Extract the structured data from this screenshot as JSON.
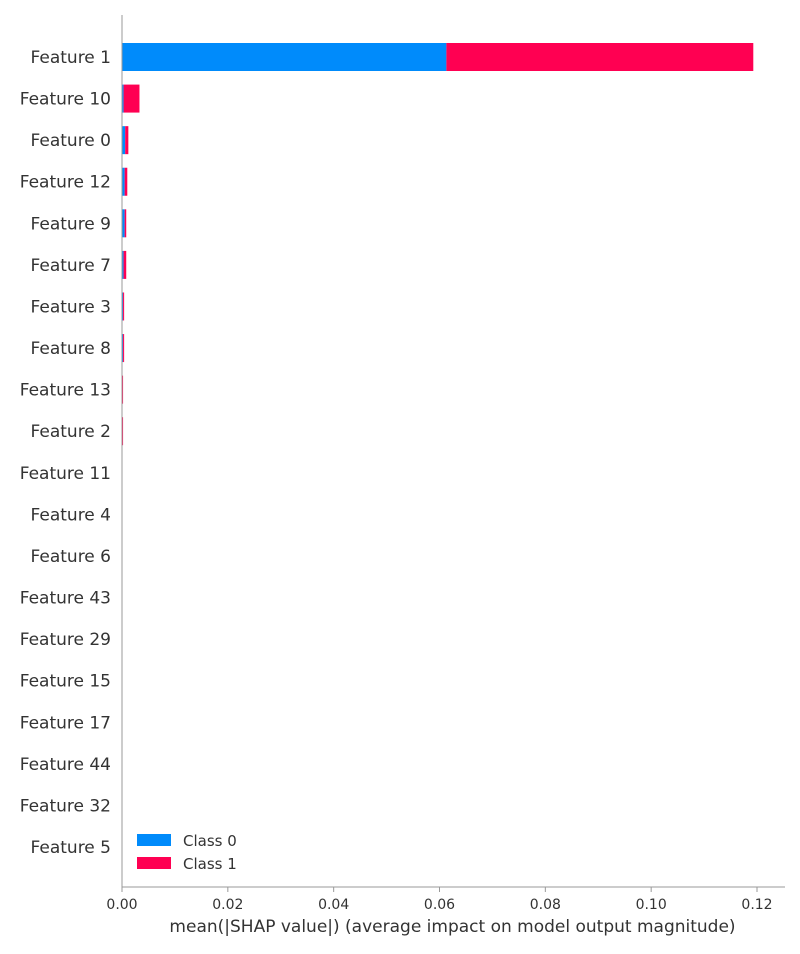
{
  "chart_data": {
    "type": "bar",
    "orientation": "horizontal",
    "stacked": true,
    "title": "",
    "xlabel": "mean(|SHAP value|) (average impact on model output magnitude)",
    "ylabel": "",
    "xlim": [
      0,
      0.125
    ],
    "xticks": [
      "0.00",
      "0.02",
      "0.04",
      "0.06",
      "0.08",
      "0.10",
      "0.12"
    ],
    "grid": false,
    "legend_position": "bottom-left",
    "categories": [
      "Feature 1",
      "Feature 10",
      "Feature 0",
      "Feature 12",
      "Feature 9",
      "Feature 7",
      "Feature 3",
      "Feature 8",
      "Feature 13",
      "Feature 2",
      "Feature 11",
      "Feature 4",
      "Feature 6",
      "Feature 43",
      "Feature 29",
      "Feature 15",
      "Feature 17",
      "Feature 44",
      "Feature 32",
      "Feature 5"
    ],
    "series": [
      {
        "name": "Class 0",
        "color": "#008bfb",
        "values": [
          0.0613,
          0.0003,
          0.0006,
          0.0005,
          0.0005,
          0.0003,
          0.0002,
          0.0002,
          0.0001,
          0.0001,
          0.0,
          0.0,
          0.0,
          0.0,
          0.0,
          0.0,
          0.0,
          0.0,
          0.0,
          0.0
        ]
      },
      {
        "name": "Class 1",
        "color": "#ff0052",
        "values": [
          0.058,
          0.003,
          0.0006,
          0.0005,
          0.0003,
          0.0005,
          0.0002,
          0.0002,
          0.0001,
          0.0001,
          0.0,
          0.0,
          0.0,
          0.0,
          0.0,
          0.0,
          0.0,
          0.0,
          0.0,
          0.0
        ]
      }
    ]
  },
  "style": {
    "axis_color": "#999999",
    "text_color": "#333333"
  }
}
